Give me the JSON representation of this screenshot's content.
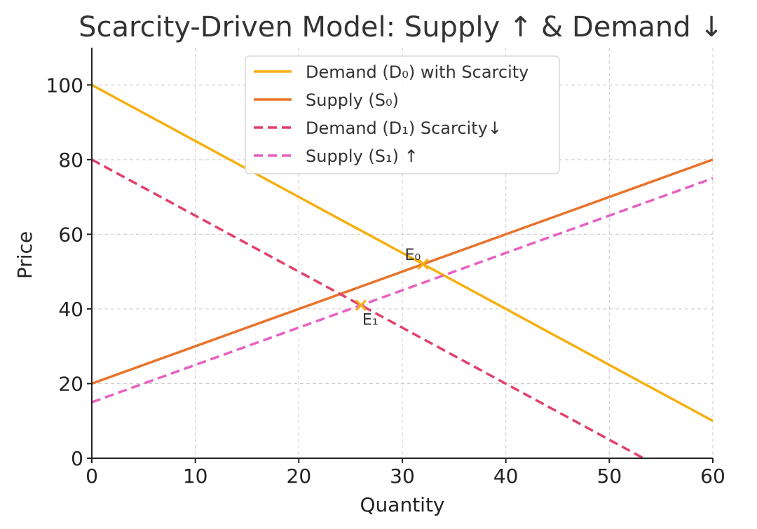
{
  "chart_data": {
    "type": "line",
    "title": "Scarcity-Driven Model: Supply ↑ & Demand ↓",
    "xlabel": "Quantity",
    "ylabel": "Price",
    "xlim": [
      0,
      60
    ],
    "ylim": [
      0,
      110
    ],
    "xticks": [
      0,
      10,
      20,
      30,
      40,
      50,
      60
    ],
    "yticks": [
      0,
      20,
      40,
      60,
      80,
      100
    ],
    "grid": true,
    "legend_position": "top-center",
    "series": [
      {
        "name": "Demand (D₀) with Scarcity",
        "color": "#f5b013",
        "style": "solid",
        "x": [
          0,
          60
        ],
        "y": [
          100,
          10
        ]
      },
      {
        "name": "Supply (S₀)",
        "color": "#e8732b",
        "style": "solid",
        "x": [
          0,
          60
        ],
        "y": [
          20,
          80
        ]
      },
      {
        "name": "Demand (D₁) Scarcity↓",
        "color": "#e2406b",
        "style": "dashed",
        "x": [
          0,
          53.3
        ],
        "y": [
          80,
          0
        ]
      },
      {
        "name": "Supply (S₁) ↑",
        "color": "#e860c2",
        "style": "dashed",
        "x": [
          0,
          60
        ],
        "y": [
          15,
          75
        ]
      }
    ],
    "points": [
      {
        "label": "E₀",
        "x": 32,
        "y": 52,
        "color": "#f5b013",
        "label_pos": "upper-left"
      },
      {
        "label": "E₁",
        "x": 26,
        "y": 41,
        "color": "#f5b013",
        "label_pos": "lower-right"
      }
    ]
  }
}
